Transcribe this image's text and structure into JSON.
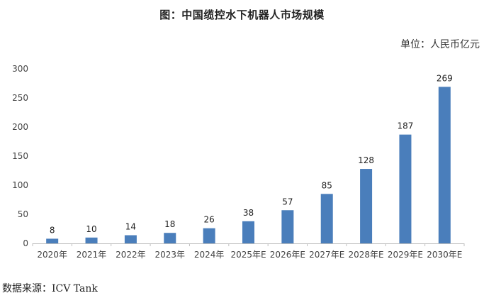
{
  "chart_data": {
    "type": "bar",
    "title": "图：中国缆控水下机器人市场规模",
    "unit": "单位：人民币亿元",
    "source": "数据来源：ICV Tank",
    "categories": [
      "2020年",
      "2021年",
      "2022年",
      "2023年",
      "2024年",
      "2025年E",
      "2026年E",
      "2027年E",
      "2028年E",
      "2029年E",
      "2030年E"
    ],
    "values": [
      8,
      10,
      14,
      18,
      26,
      38,
      57,
      85,
      128,
      187,
      269
    ],
    "y_ticks": [
      "0",
      "50",
      "100",
      "150",
      "200",
      "250",
      "300"
    ],
    "ylim": [
      0,
      300
    ],
    "grid": false,
    "bar_color": "#4a7ebb",
    "axis_color": "#bfbfbf"
  }
}
